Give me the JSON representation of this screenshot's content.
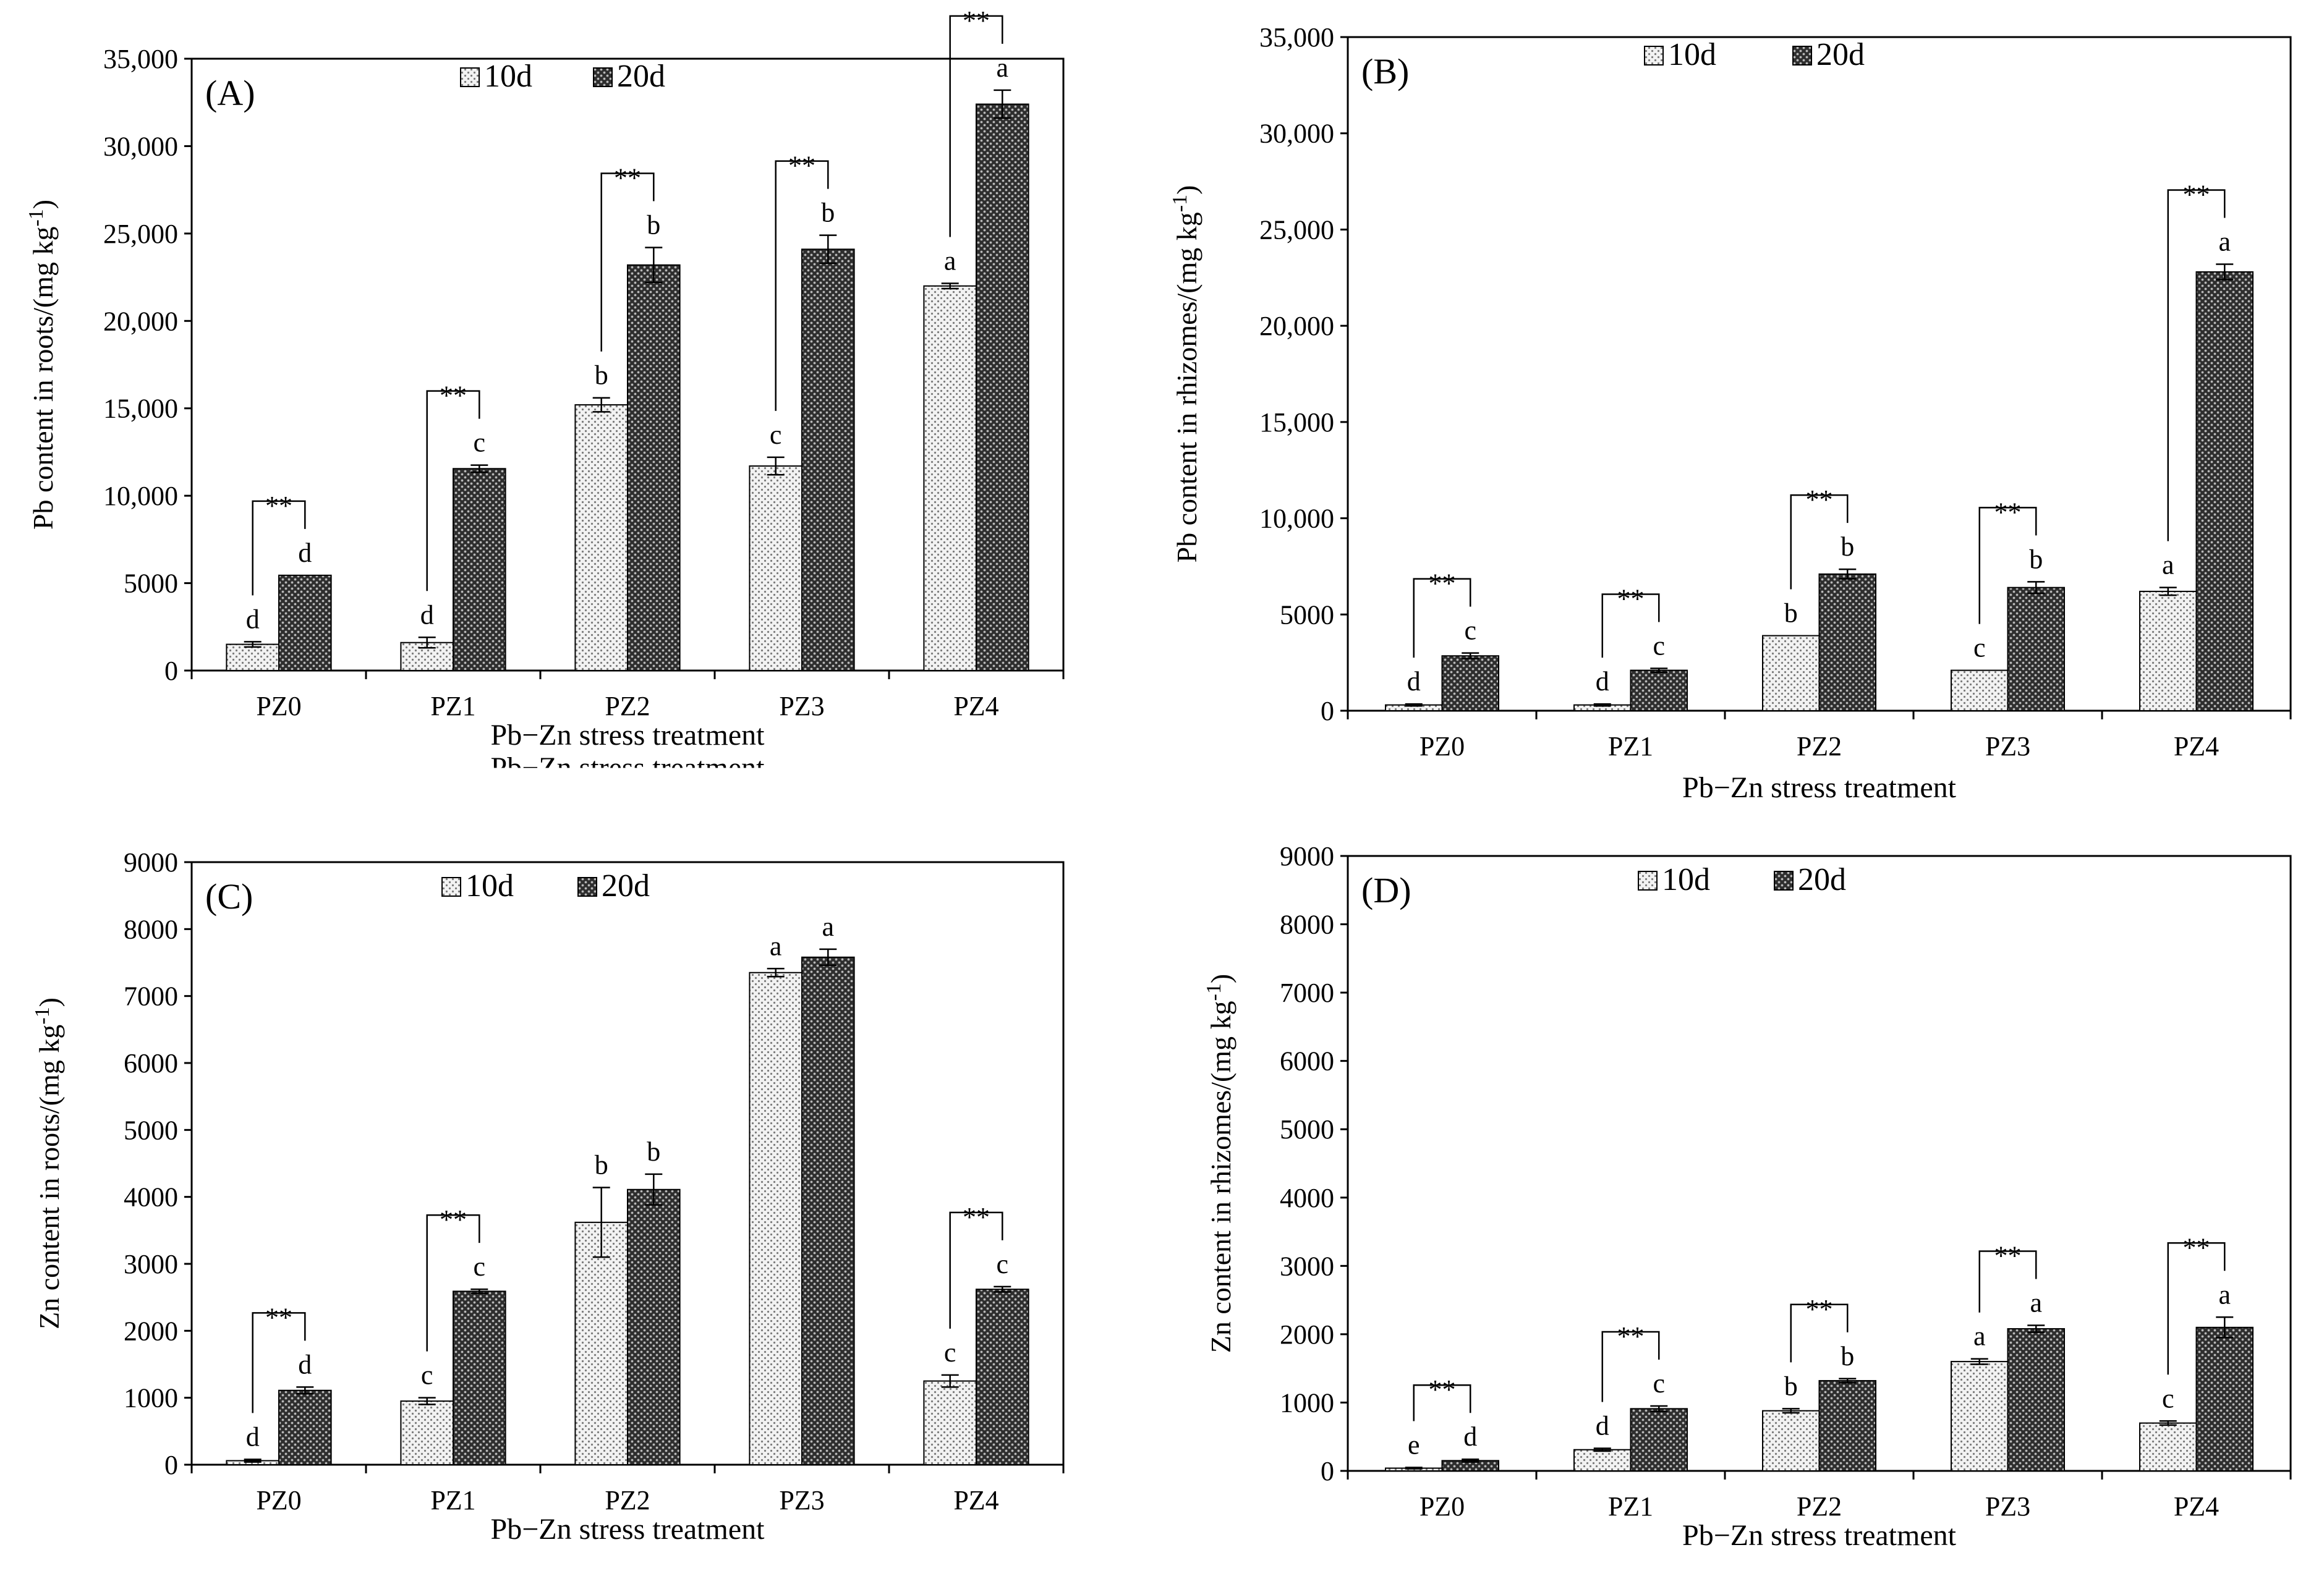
{
  "colors": {
    "bar10": "#e6e6e6",
    "bar20": "#4d4d4d",
    "axis": "#000000"
  },
  "chart_data": [
    {
      "id": "A",
      "type": "bar",
      "panel_label": "(A)",
      "ylabel": "Pb content in roots/(mg kg",
      "ylabel_sup": "-1",
      "ylabel_tail": ")",
      "xlabel": "Pb−Zn stress treatment",
      "ghost_xlabel": "Pb−Zn stress treatment",
      "ylim": [
        0,
        35000
      ],
      "yticks": [
        0,
        5000,
        10000,
        15000,
        20000,
        25000,
        30000,
        35000
      ],
      "ytick_labels": [
        "0",
        "5000",
        "10,000",
        "15,000",
        "20,000",
        "25,000",
        "30,000",
        "35,000"
      ],
      "categories": [
        "PZ0",
        "PZ1",
        "PZ2",
        "PZ3",
        "PZ4"
      ],
      "legend": [
        "10d",
        "20d"
      ],
      "series": [
        {
          "name": "10d",
          "values": [
            1500,
            1600,
            15200,
            11700,
            22000
          ],
          "errors": [
            150,
            300,
            400,
            500,
            150
          ],
          "letters": [
            "d",
            "d",
            "b",
            "c",
            "a"
          ]
        },
        {
          "name": "20d",
          "values": [
            5450,
            11550,
            23200,
            24100,
            32400
          ],
          "errors": [
            0,
            200,
            1000,
            800,
            800
          ],
          "letters": [
            "d",
            "c",
            "b",
            "b",
            "a"
          ]
        }
      ],
      "sig_labels": [
        "**",
        "**",
        "**",
        "**",
        "**"
      ]
    },
    {
      "id": "B",
      "type": "bar",
      "panel_label": "(B)",
      "ylabel": "Pb content in rhizomes/(mg kg",
      "ylabel_sup": "-1",
      "ylabel_tail": ")",
      "xlabel": "Pb−Zn stress treatment",
      "ylim": [
        0,
        35000
      ],
      "yticks": [
        0,
        5000,
        10000,
        15000,
        20000,
        25000,
        30000,
        35000
      ],
      "ytick_labels": [
        "0",
        "5000",
        "10,000",
        "15,000",
        "20,000",
        "25,000",
        "30,000",
        "35,000"
      ],
      "categories": [
        "PZ0",
        "PZ1",
        "PZ2",
        "PZ3",
        "PZ4"
      ],
      "legend": [
        "10d",
        "20d"
      ],
      "series": [
        {
          "name": "10d",
          "values": [
            300,
            300,
            3900,
            2100,
            6200
          ],
          "errors": [
            50,
            50,
            0,
            0,
            200
          ],
          "letters": [
            "d",
            "d",
            "b",
            "c",
            "a"
          ]
        },
        {
          "name": "20d",
          "values": [
            2850,
            2100,
            7100,
            6400,
            22800
          ],
          "errors": [
            150,
            100,
            250,
            300,
            400
          ],
          "letters": [
            "c",
            "c",
            "b",
            "b",
            "a"
          ]
        }
      ],
      "sig_labels": [
        "**",
        "**",
        "**",
        "**",
        "**"
      ]
    },
    {
      "id": "C",
      "type": "bar",
      "panel_label": "(C)",
      "ylabel": "Zn content in roots/(mg kg",
      "ylabel_sup": "-1",
      "ylabel_tail": ")",
      "xlabel": "Pb−Zn stress treatment",
      "ylim": [
        0,
        9000
      ],
      "yticks": [
        0,
        1000,
        2000,
        3000,
        4000,
        5000,
        6000,
        7000,
        8000,
        9000
      ],
      "ytick_labels": [
        "0",
        "1000",
        "2000",
        "3000",
        "4000",
        "5000",
        "6000",
        "7000",
        "8000",
        "9000"
      ],
      "categories": [
        "PZ0",
        "PZ1",
        "PZ2",
        "PZ3",
        "PZ4"
      ],
      "legend": [
        "10d",
        "20d"
      ],
      "series": [
        {
          "name": "10d",
          "values": [
            60,
            950,
            3620,
            7350,
            1250
          ],
          "errors": [
            20,
            50,
            520,
            60,
            90
          ],
          "letters": [
            "d",
            "c",
            "b",
            "a",
            "c"
          ]
        },
        {
          "name": "20d",
          "values": [
            1110,
            2590,
            4110,
            7580,
            2620
          ],
          "errors": [
            50,
            30,
            230,
            120,
            40
          ],
          "letters": [
            "d",
            "c",
            "b",
            "a",
            "c"
          ]
        }
      ],
      "sig_labels": [
        "**",
        "**",
        "",
        "",
        "**"
      ]
    },
    {
      "id": "D",
      "type": "bar",
      "panel_label": "(D)",
      "ylabel": "Zn content in rhizomes/(mg kg",
      "ylabel_sup": "-1",
      "ylabel_tail": ")",
      "xlabel": "Pb−Zn stress treatment",
      "ylim": [
        0,
        9000
      ],
      "yticks": [
        0,
        1000,
        2000,
        3000,
        4000,
        5000,
        6000,
        7000,
        8000,
        9000
      ],
      "ytick_labels": [
        "0",
        "1000",
        "2000",
        "3000",
        "4000",
        "5000",
        "6000",
        "7000",
        "8000",
        "9000"
      ],
      "categories": [
        "PZ0",
        "PZ1",
        "PZ2",
        "PZ3",
        "PZ4"
      ],
      "legend": [
        "10d",
        "20d"
      ],
      "series": [
        {
          "name": "10d",
          "values": [
            40,
            310,
            880,
            1600,
            700
          ],
          "errors": [
            10,
            20,
            30,
            40,
            30
          ],
          "letters": [
            "e",
            "d",
            "b",
            "a",
            "c"
          ]
        },
        {
          "name": "20d",
          "values": [
            150,
            910,
            1320,
            2080,
            2100
          ],
          "errors": [
            20,
            40,
            30,
            50,
            150
          ],
          "letters": [
            "d",
            "c",
            "b",
            "a",
            "a"
          ]
        }
      ],
      "sig_labels": [
        "**",
        "**",
        "**",
        "**",
        "**"
      ]
    }
  ]
}
